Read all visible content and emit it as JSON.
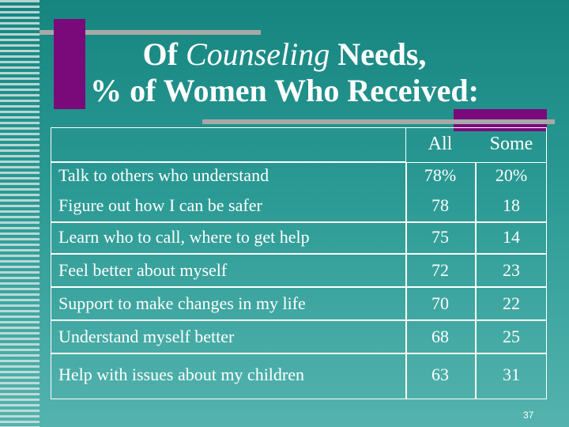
{
  "title": {
    "prefix": "Of ",
    "italic": "Counseling",
    "line1_suffix": " Needs,",
    "line2": "% of Women Who Received:"
  },
  "table": {
    "headers": [
      "All",
      "Some"
    ],
    "rows": [
      {
        "label": "Talk to others who understand",
        "all": "78%",
        "some": "20%"
      },
      {
        "label": "Figure out how I can be safer",
        "all": "78",
        "some": "18"
      },
      {
        "label": "Learn who to call, where to get help",
        "all": "75",
        "some": "14"
      },
      {
        "label": "Feel better about myself",
        "all": "72",
        "some": "23"
      },
      {
        "label": "Support to make changes in my life",
        "all": "70",
        "some": "22"
      },
      {
        "label": "Understand myself better",
        "all": "68",
        "some": "25"
      },
      {
        "label": "Help with issues about my children",
        "all": "63",
        "some": "31"
      }
    ]
  },
  "page_number": "37",
  "colors": {
    "background": "#2b9a94",
    "accent": "#7a0a7a",
    "text": "#ffffff"
  }
}
